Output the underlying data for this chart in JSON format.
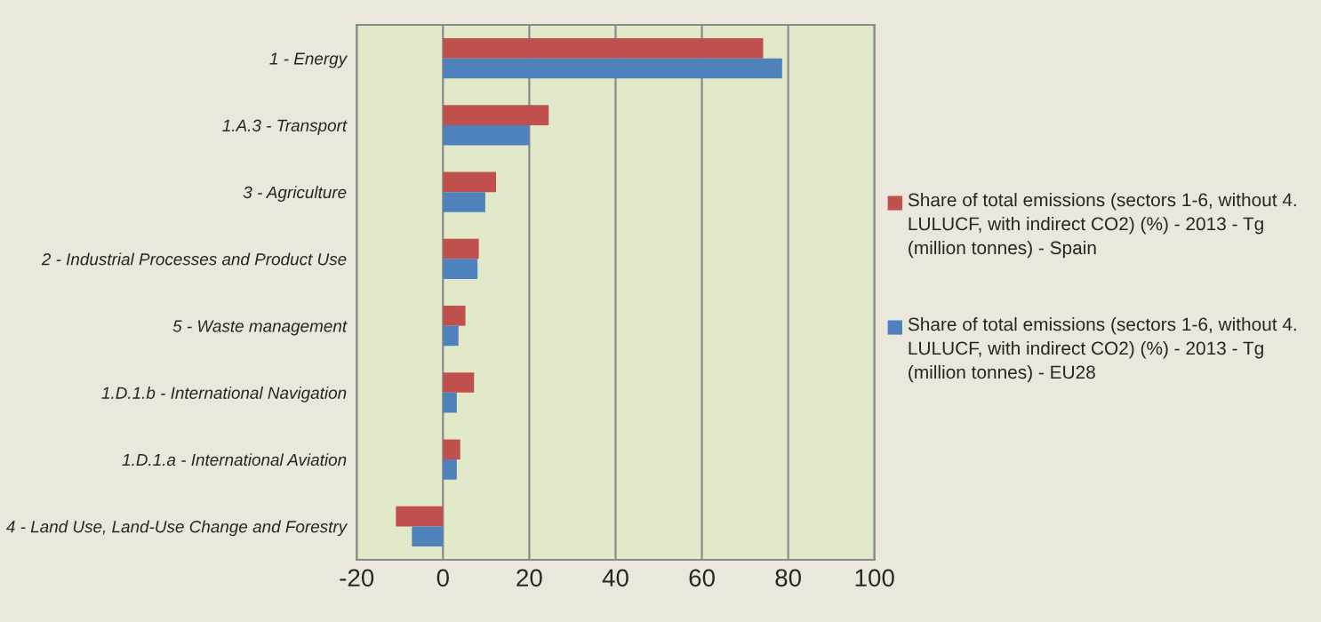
{
  "chart_data": {
    "type": "bar",
    "orientation": "horizontal",
    "categories": [
      "1 - Energy",
      "1.A.3 - Transport",
      "3 - Agriculture",
      "2 - Industrial Processes and Product Use",
      "5 - Waste management",
      "1.D.1.b - International Navigation",
      "1.D.1.a - International Aviation",
      "4 - Land Use, Land-Use Change and Forestry"
    ],
    "series": [
      {
        "name": "Share of total emissions (sectors 1-6, without 4. LULUCF, with indirect CO2) (%) - 2013 - Tg (million tonnes) - Spain",
        "color": "#c0504d",
        "values": [
          74.2,
          24.5,
          12.3,
          8.3,
          5.2,
          7.2,
          4.0,
          -10.9
        ]
      },
      {
        "name": "Share of total emissions (sectors 1-6, without 4. LULUCF, with indirect CO2) (%) - 2013 - Tg (million tonnes) - EU28",
        "color": "#4f81bd",
        "values": [
          78.6,
          20.0,
          9.8,
          8.0,
          3.6,
          3.2,
          3.2,
          -7.2
        ]
      }
    ],
    "xlim": [
      -20,
      100
    ],
    "xticks": [
      -20,
      0,
      20,
      40,
      60,
      80,
      100
    ],
    "grid": "x",
    "legend": "right"
  }
}
